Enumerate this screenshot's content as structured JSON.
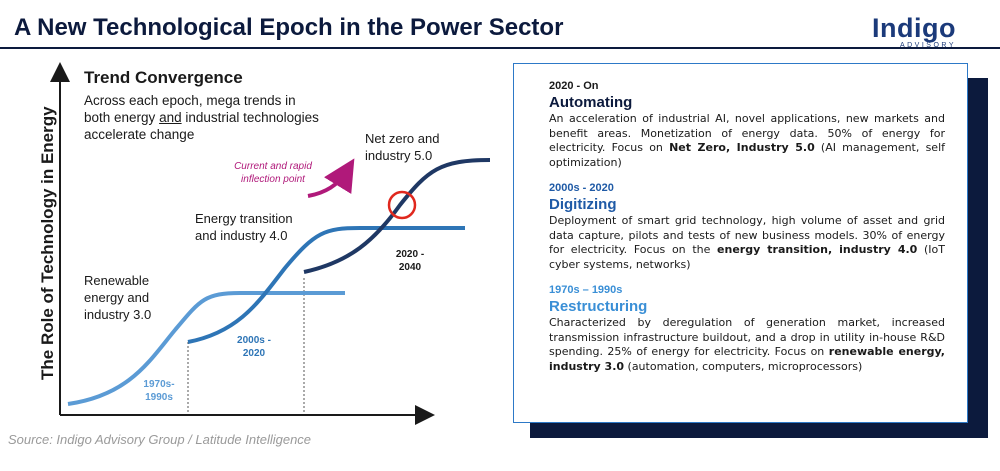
{
  "title": "A New Technological Epoch in the Power Sector",
  "logo": {
    "word": "Indigo",
    "sub": "ADVISORY"
  },
  "diagram": {
    "trend_title": "Trend Convergence",
    "trend_desc_1": "Across each epoch, mega trends in both energy ",
    "trend_desc_and": "and",
    "trend_desc_2": " industrial technologies accelerate change",
    "y_axis_label": "The Role of Technology in Energy",
    "labels": {
      "net_zero": "Net zero and industry 5.0",
      "energy_transition": "Energy transition and industry 4.0",
      "renewable": "Renewable energy and industry 3.0",
      "inflection": "Current and rapid inflection point"
    },
    "periods": {
      "p1": "1970s- 1990s",
      "p2": "2000s - 2020",
      "p3": "2020 - 2040"
    },
    "colors": {
      "curve1": "#5b9bd5",
      "curve2": "#2e75b6",
      "curve3": "#1f3864",
      "accent": "#b0197a",
      "circle": "#e0281e"
    }
  },
  "source": "Source: Indigo Advisory Group / Latitude Intelligence",
  "panel": {
    "epochs": [
      {
        "date": "2020 - On",
        "name": "Automating",
        "color": "#0c1a3d",
        "body_1": "An acceleration of industrial AI, novel applications, new markets and benefit areas. Monetization of energy data. 50% of energy for electricity. Focus on ",
        "body_bold": "Net Zero, Industry 5.0",
        "body_2": " (AI management, self optimization)"
      },
      {
        "date": "2000s - 2020",
        "name": "Digitizing",
        "color": "#1f5aa6",
        "body_1": "Deployment of smart grid technology, high volume of asset and grid data capture, pilots and tests of new business models. 30% of energy for electricity. Focus on the ",
        "body_bold": "energy transition, industry 4.0",
        "body_2": " (IoT cyber systems, networks)"
      },
      {
        "date": "1970s – 1990s",
        "name": "Restructuring",
        "color": "#3a8fd6",
        "body_1": "Characterized by deregulation of generation market, increased transmission infrastructure buildout, and a drop in utility in-house R&D spending. 25% of energy for electricity. Focus on ",
        "body_bold": "renewable energy, industry 3.0",
        "body_2": " (automation, computers, microprocessors)"
      }
    ]
  }
}
